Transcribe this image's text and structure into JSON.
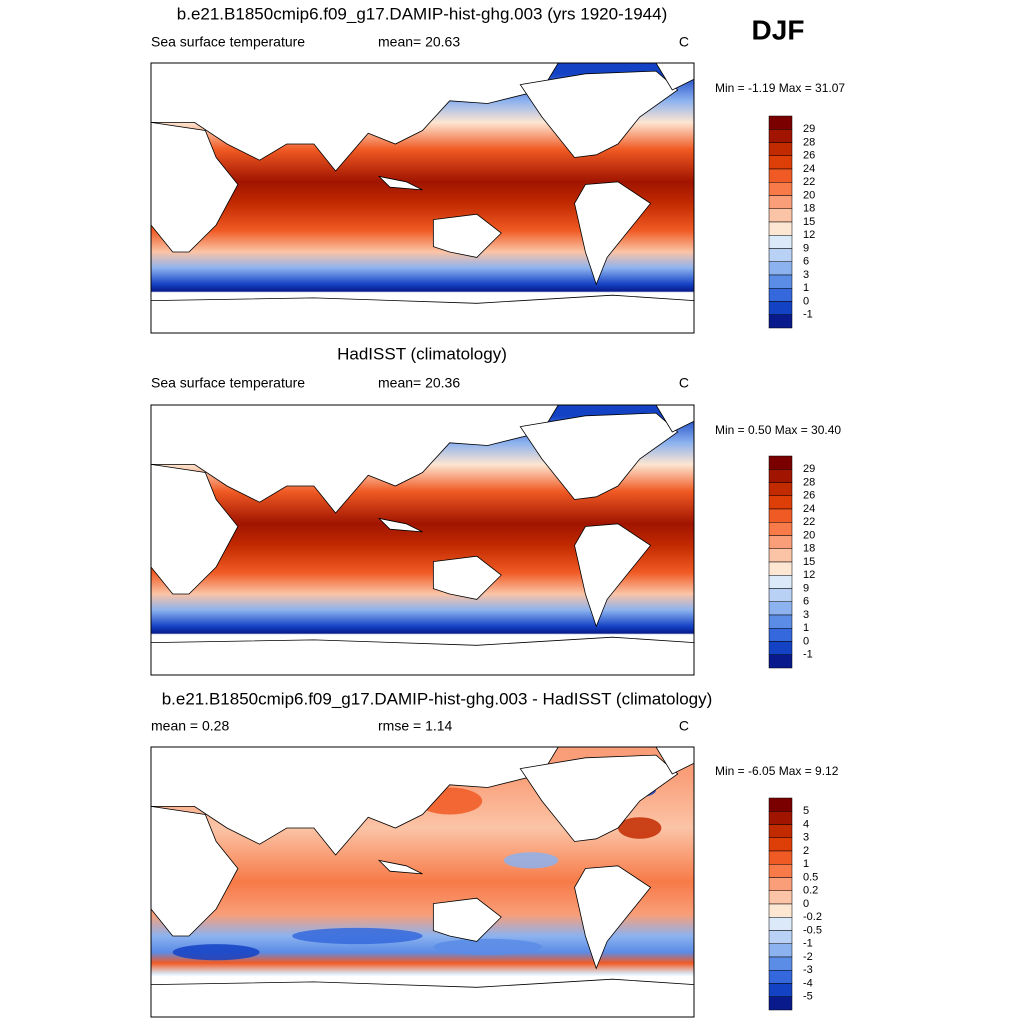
{
  "season": "DJF",
  "panels": [
    {
      "title": "b.e21.B1850cmip6.f09_g17.DAMIP-hist-ghg.003 (yrs 1920-1944)",
      "left_label": "Sea surface temperature",
      "center_label": "mean=  20.63",
      "right_label": "C",
      "minmax": "Min =  -1.19 Max =  31.07",
      "colorbar": {
        "labels": [
          "29",
          "28",
          "26",
          "24",
          "22",
          "20",
          "18",
          "15",
          "12",
          "9",
          "6",
          "3",
          "1",
          "0",
          "-1"
        ],
        "colors": [
          "#7a0000",
          "#a01400",
          "#c22a00",
          "#de3e08",
          "#f05a24",
          "#f77a48",
          "#f99e78",
          "#fbc4a6",
          "#fde6d2",
          "#dce9f8",
          "#b8d1f5",
          "#8cb2ef",
          "#5b8ce6",
          "#3468dc",
          "#1442c4",
          "#081a8c"
        ]
      }
    },
    {
      "title": "HadISST (climatology)",
      "left_label": "Sea surface temperature",
      "center_label": "mean=  20.36",
      "right_label": "C",
      "minmax": "Min =   0.50 Max =  30.40",
      "colorbar": {
        "labels": [
          "29",
          "28",
          "26",
          "24",
          "22",
          "20",
          "18",
          "15",
          "12",
          "9",
          "6",
          "3",
          "1",
          "0",
          "-1"
        ],
        "colors": [
          "#7a0000",
          "#a01400",
          "#c22a00",
          "#de3e08",
          "#f05a24",
          "#f77a48",
          "#f99e78",
          "#fbc4a6",
          "#fde6d2",
          "#dce9f8",
          "#b8d1f5",
          "#8cb2ef",
          "#5b8ce6",
          "#3468dc",
          "#1442c4",
          "#081a8c"
        ]
      }
    },
    {
      "title": "b.e21.B1850cmip6.f09_g17.DAMIP-hist-ghg.003 - HadISST (climatology)",
      "left_label": "mean =   0.28",
      "center_label": "rmse =   1.14",
      "right_label": "C",
      "minmax": "Min =  -6.05 Max =   9.12",
      "colorbar": {
        "labels": [
          "5",
          "4",
          "3",
          "2",
          "1",
          "0.5",
          "0.2",
          "0",
          "-0.2",
          "-0.5",
          "-1",
          "-2",
          "-3",
          "-4",
          "-5"
        ],
        "colors": [
          "#7a0000",
          "#a01400",
          "#c22a00",
          "#de3e08",
          "#f05a24",
          "#f77a48",
          "#f99e78",
          "#fbc4a6",
          "#fde6d2",
          "#dce9f8",
          "#b8d1f5",
          "#8cb2ef",
          "#5b8ce6",
          "#3468dc",
          "#1442c4",
          "#081a8c"
        ]
      }
    }
  ]
}
